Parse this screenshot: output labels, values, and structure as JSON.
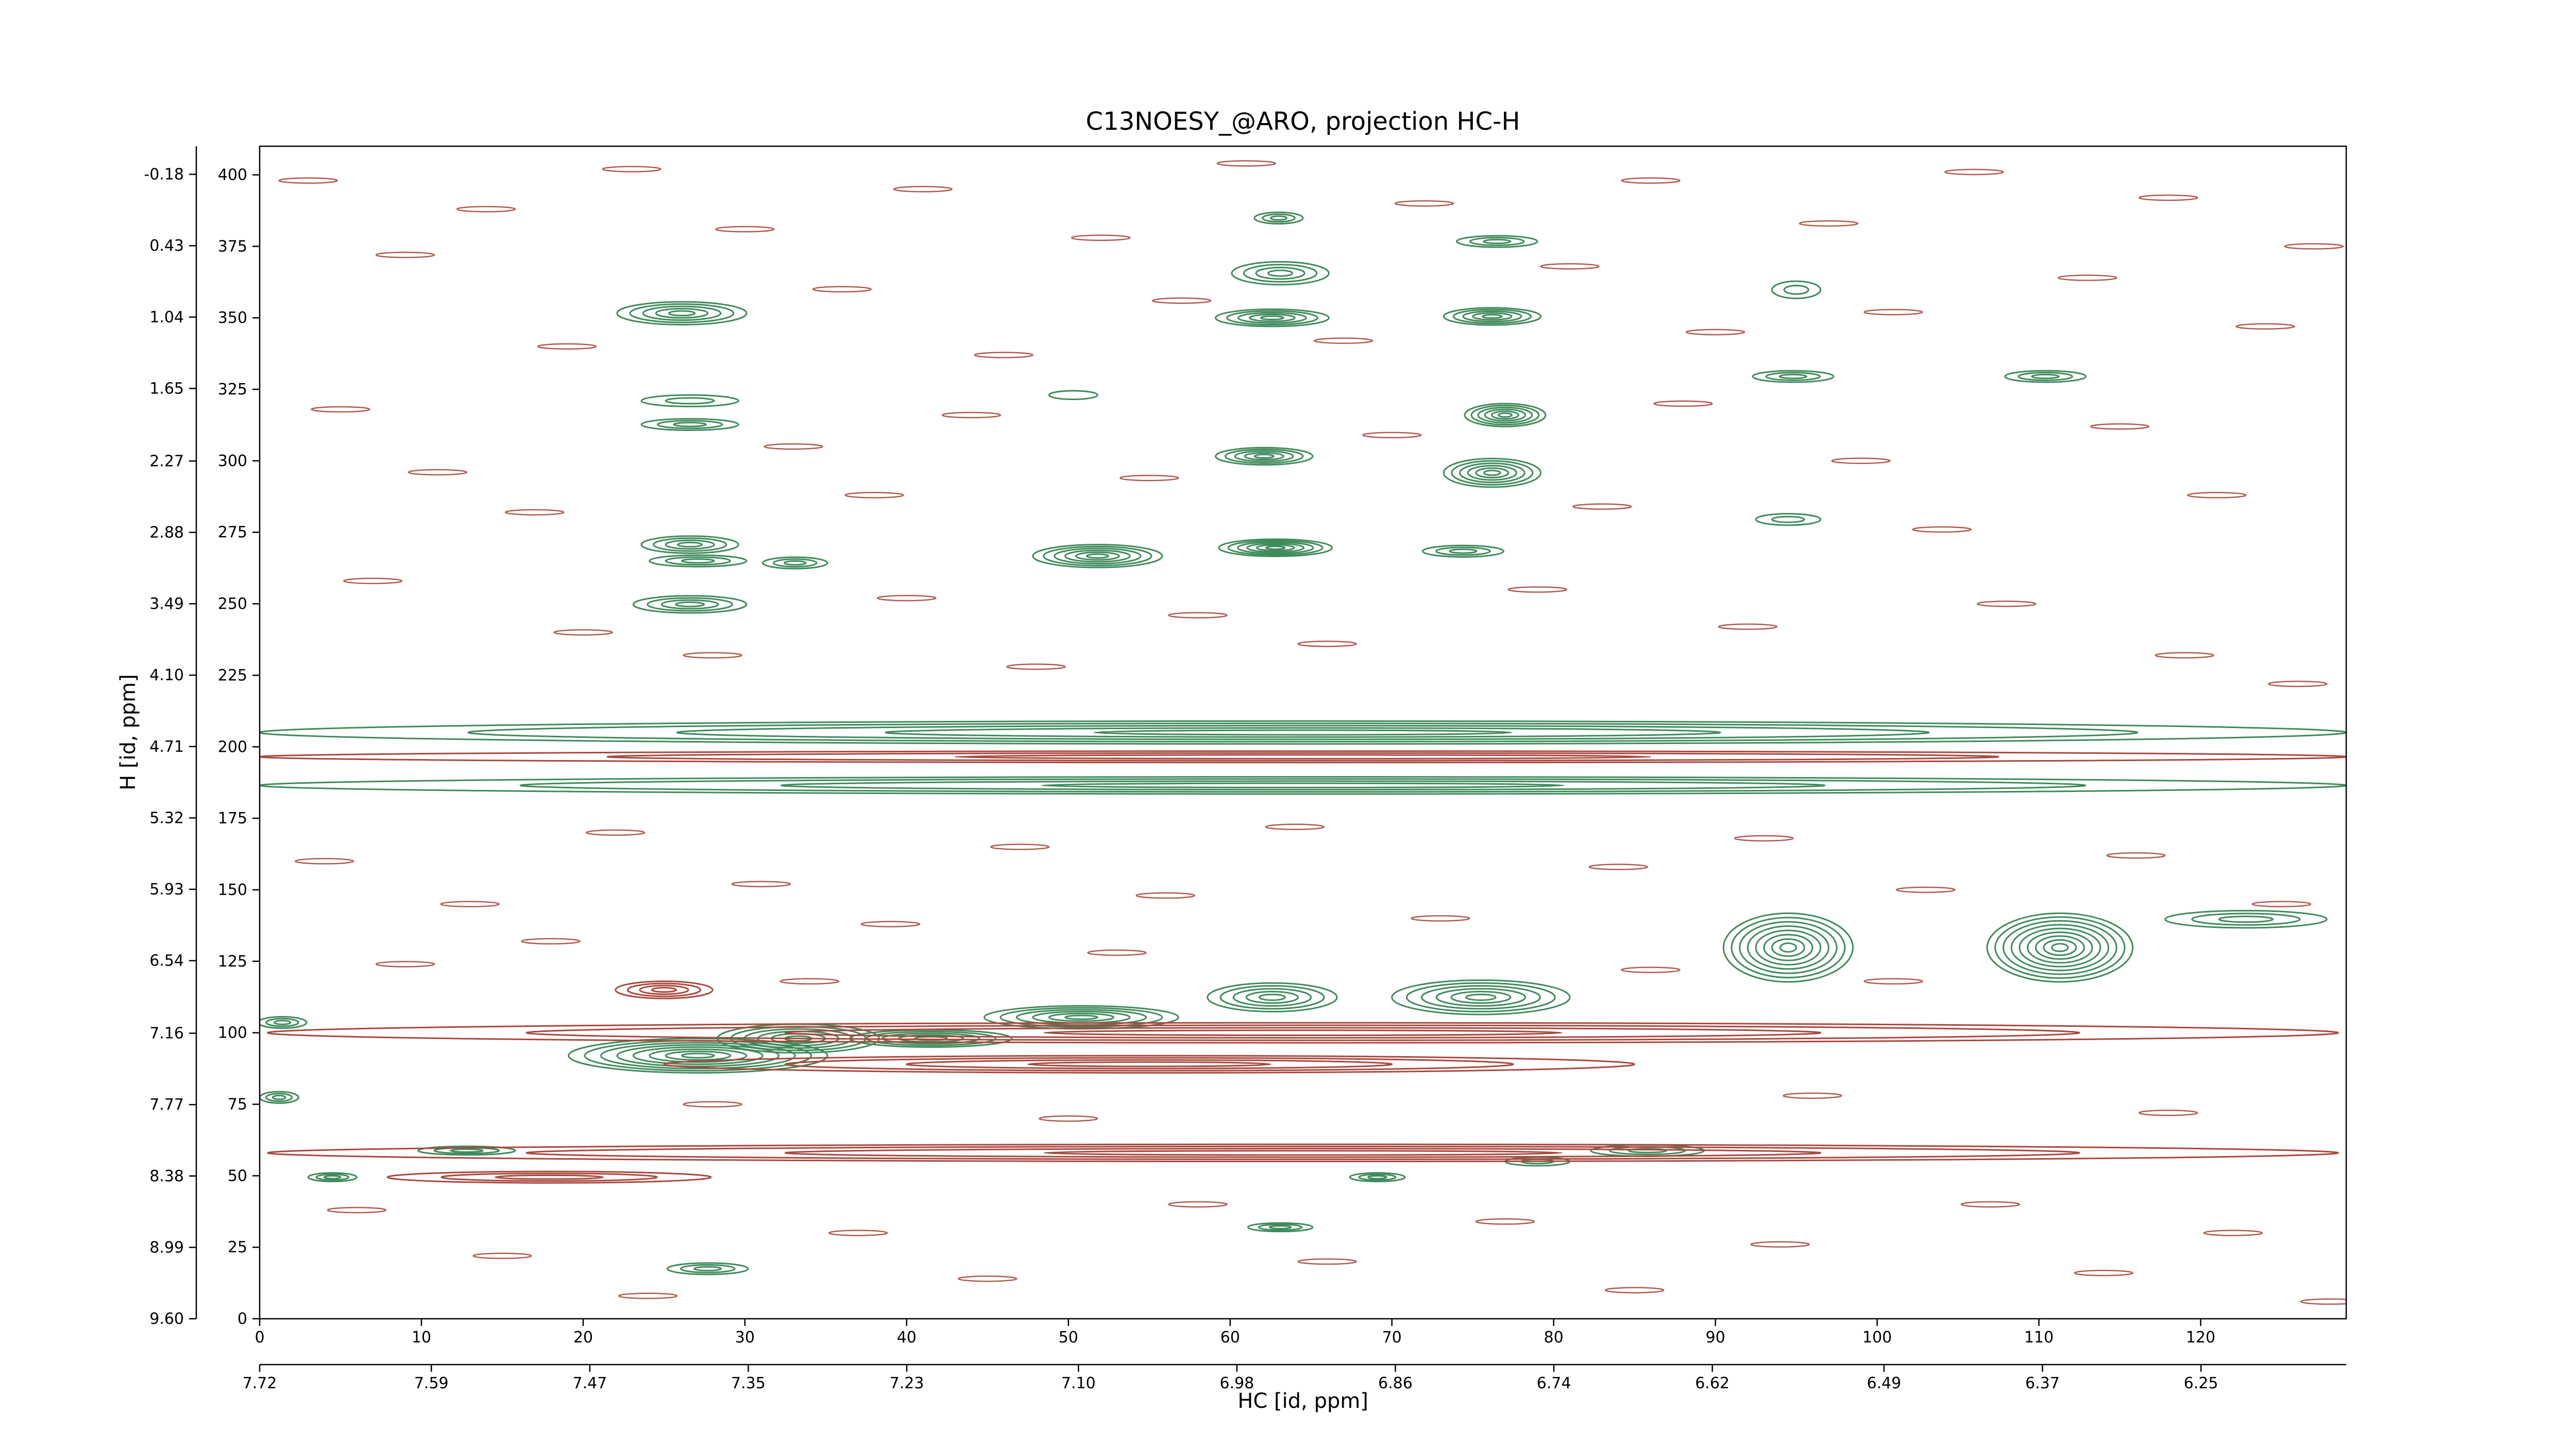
{
  "chart_data": {
    "type": "contour",
    "title": "C13NOESY_@ARO, projection HC-H",
    "xlabel": "HC [id, ppm]",
    "ylabel": "H [id, ppm]",
    "xlim": [
      0,
      129
    ],
    "ylim": [
      0,
      410
    ],
    "xticks": [
      0,
      10,
      20,
      30,
      40,
      50,
      60,
      70,
      80,
      90,
      100,
      110,
      120
    ],
    "yticks": [
      0,
      25,
      50,
      75,
      100,
      125,
      150,
      175,
      200,
      225,
      250,
      275,
      300,
      325,
      350,
      375,
      400
    ],
    "x2lim": [
      7.72,
      6.14
    ],
    "x2ticks": [
      7.72,
      7.59,
      7.47,
      7.35,
      7.23,
      {
        "value": 7.1,
        "label": "7.10"
      },
      6.98,
      6.86,
      6.74,
      6.62,
      6.49,
      6.37,
      6.25
    ],
    "y2lim": [
      9.6,
      -0.42
    ],
    "y2ticks": [
      {
        "value": 9.6,
        "label": "9.60"
      },
      8.99,
      8.38,
      7.77,
      7.16,
      6.54,
      5.93,
      5.32,
      4.71,
      {
        "value": 4.1,
        "label": "4.10"
      },
      3.49,
      2.88,
      2.27,
      1.65,
      1.04,
      0.43,
      -0.18
    ],
    "contours": [
      {
        "color": "#3f8a5a",
        "peaks": [
          {
            "x": 26.1,
            "y": 351.6,
            "rx": 4,
            "ry": 4,
            "levels": 5
          },
          {
            "x": 26.6,
            "y": 321,
            "rx": 3,
            "ry": 2,
            "levels": 2
          },
          {
            "x": 26.6,
            "y": 312.7,
            "rx": 3,
            "ry": 2,
            "levels": 3
          },
          {
            "x": 26.6,
            "y": 270.7,
            "rx": 3,
            "ry": 3,
            "levels": 4
          },
          {
            "x": 27.1,
            "y": 265,
            "rx": 3,
            "ry": 2,
            "levels": 3
          },
          {
            "x": 26.6,
            "y": 249.8,
            "rx": 3.5,
            "ry": 3,
            "levels": 4
          },
          {
            "x": 33.1,
            "y": 264.3,
            "rx": 2,
            "ry": 2,
            "levels": 3
          },
          {
            "x": 51.8,
            "y": 266.7,
            "rx": 4,
            "ry": 4,
            "levels": 6
          },
          {
            "x": 62.8,
            "y": 269.6,
            "rx": 3.5,
            "ry": 3,
            "levels": 6
          },
          {
            "x": 63,
            "y": 384.9,
            "rx": 1.5,
            "ry": 2,
            "levels": 3
          },
          {
            "x": 63.1,
            "y": 365.6,
            "rx": 3,
            "ry": 4,
            "levels": 4
          },
          {
            "x": 62.6,
            "y": 350,
            "rx": 3.5,
            "ry": 3,
            "levels": 5
          },
          {
            "x": 62.1,
            "y": 301.6,
            "rx": 3,
            "ry": 3,
            "levels": 5
          },
          {
            "x": 76.5,
            "y": 376.7,
            "rx": 2.5,
            "ry": 2,
            "levels": 3
          },
          {
            "x": 76.2,
            "y": 350.5,
            "rx": 3,
            "ry": 3,
            "levels": 5
          },
          {
            "x": 77,
            "y": 316,
            "rx": 2.5,
            "ry": 4,
            "levels": 6
          },
          {
            "x": 76.2,
            "y": 295.8,
            "rx": 3,
            "ry": 5,
            "levels": 6
          },
          {
            "x": 74.4,
            "y": 268.4,
            "rx": 2.5,
            "ry": 2,
            "levels": 3
          },
          {
            "x": 94.8,
            "y": 329.5,
            "rx": 2.5,
            "ry": 2,
            "levels": 3
          },
          {
            "x": 110.4,
            "y": 329.5,
            "rx": 2.5,
            "ry": 2,
            "levels": 3
          },
          {
            "x": 95,
            "y": 359.8,
            "rx": 1.5,
            "ry": 3,
            "levels": 2
          },
          {
            "x": 94.5,
            "y": 279.5,
            "rx": 2,
            "ry": 2,
            "levels": 2
          },
          {
            "x": 50.3,
            "y": 323,
            "rx": 1.5,
            "ry": 1.5,
            "levels": 1
          },
          {
            "x": 94.5,
            "y": 129.8,
            "rx": 4,
            "ry": 12,
            "levels": 8
          },
          {
            "x": 111.3,
            "y": 129.8,
            "rx": 4.5,
            "ry": 12,
            "levels": 9
          },
          {
            "x": 122.8,
            "y": 139.7,
            "rx": 5,
            "ry": 3,
            "levels": 3
          },
          {
            "x": 62.6,
            "y": 112.4,
            "rx": 4,
            "ry": 5,
            "levels": 5
          },
          {
            "x": 75.5,
            "y": 112.4,
            "rx": 5.5,
            "ry": 6,
            "levels": 6
          },
          {
            "x": 27.1,
            "y": 92,
            "rx": 8,
            "ry": 6,
            "levels": 8
          },
          {
            "x": 33.3,
            "y": 98,
            "rx": 5,
            "ry": 5,
            "levels": 6
          },
          {
            "x": 41.5,
            "y": 98,
            "rx": 5,
            "ry": 3,
            "levels": 5
          },
          {
            "x": 50.8,
            "y": 105.4,
            "rx": 6,
            "ry": 4,
            "levels": 6
          },
          {
            "x": 1.4,
            "y": 103.6,
            "rx": 1.5,
            "ry": 2,
            "levels": 3
          },
          {
            "x": 1.2,
            "y": 77.4,
            "rx": 1.2,
            "ry": 2,
            "levels": 3
          },
          {
            "x": 4.5,
            "y": 49.5,
            "rx": 1.5,
            "ry": 1.5,
            "levels": 3
          },
          {
            "x": 12.8,
            "y": 58.8,
            "rx": 3,
            "ry": 1.5,
            "levels": 3
          },
          {
            "x": 85.8,
            "y": 58.8,
            "rx": 3.5,
            "ry": 2,
            "levels": 3
          },
          {
            "x": 79,
            "y": 55,
            "rx": 2,
            "ry": 1.5,
            "levels": 2
          },
          {
            "x": 69.1,
            "y": 49.5,
            "rx": 1.7,
            "ry": 1.5,
            "levels": 3
          },
          {
            "x": 63.1,
            "y": 32,
            "rx": 2,
            "ry": 1.5,
            "levels": 3
          },
          {
            "x": 27.7,
            "y": 17.5,
            "rx": 2.5,
            "ry": 2,
            "levels": 3
          },
          {
            "x": 64.5,
            "y": 205,
            "rx": 64.5,
            "ry": 4,
            "levels": 5
          },
          {
            "x": 64.5,
            "y": 186.5,
            "rx": 64.5,
            "ry": 3,
            "levels": 4
          }
        ]
      },
      {
        "color": "#a8483d",
        "peaks": [
          {
            "x": 64.5,
            "y": 196.5,
            "rx": 64.5,
            "ry": 2,
            "levels": 3
          },
          {
            "x": 64.5,
            "y": 100,
            "rx": 64,
            "ry": 3.5,
            "levels": 4
          },
          {
            "x": 55,
            "y": 89,
            "rx": 30,
            "ry": 3,
            "levels": 4
          },
          {
            "x": 64.5,
            "y": 58,
            "rx": 64,
            "ry": 3,
            "levels": 4
          },
          {
            "x": 25,
            "y": 115,
            "rx": 3,
            "ry": 3,
            "levels": 4
          },
          {
            "x": 17.9,
            "y": 49.5,
            "rx": 10,
            "ry": 2,
            "levels": 3
          }
        ]
      }
    ],
    "noise": {
      "color": "#b05a50",
      "points": [
        [
          3,
          398
        ],
        [
          9,
          372
        ],
        [
          14,
          388
        ],
        [
          19,
          340
        ],
        [
          23,
          402
        ],
        [
          30,
          381
        ],
        [
          36,
          360
        ],
        [
          41,
          395
        ],
        [
          46,
          337
        ],
        [
          52,
          378
        ],
        [
          57,
          356
        ],
        [
          61,
          404
        ],
        [
          67,
          342
        ],
        [
          72,
          390
        ],
        [
          81,
          368
        ],
        [
          86,
          398
        ],
        [
          90,
          345
        ],
        [
          97,
          383
        ],
        [
          101,
          352
        ],
        [
          106,
          401
        ],
        [
          113,
          364
        ],
        [
          118,
          392
        ],
        [
          124,
          347
        ],
        [
          127,
          375
        ],
        [
          5,
          318
        ],
        [
          11,
          296
        ],
        [
          17,
          282
        ],
        [
          33,
          305
        ],
        [
          38,
          288
        ],
        [
          44,
          316
        ],
        [
          55,
          294
        ],
        [
          70,
          309
        ],
        [
          83,
          284
        ],
        [
          88,
          320
        ],
        [
          99,
          300
        ],
        [
          104,
          276
        ],
        [
          115,
          312
        ],
        [
          121,
          288
        ],
        [
          7,
          258
        ],
        [
          20,
          240
        ],
        [
          28,
          232
        ],
        [
          40,
          252
        ],
        [
          48,
          228
        ],
        [
          58,
          246
        ],
        [
          66,
          236
        ],
        [
          79,
          255
        ],
        [
          92,
          242
        ],
        [
          108,
          250
        ],
        [
          119,
          232
        ],
        [
          126,
          222
        ],
        [
          4,
          160
        ],
        [
          13,
          145
        ],
        [
          22,
          170
        ],
        [
          31,
          152
        ],
        [
          39,
          138
        ],
        [
          47,
          165
        ],
        [
          56,
          148
        ],
        [
          64,
          172
        ],
        [
          73,
          140
        ],
        [
          84,
          158
        ],
        [
          93,
          168
        ],
        [
          103,
          150
        ],
        [
          116,
          162
        ],
        [
          125,
          145
        ],
        [
          9,
          124
        ],
        [
          18,
          132
        ],
        [
          34,
          118
        ],
        [
          53,
          128
        ],
        [
          86,
          122
        ],
        [
          101,
          118
        ],
        [
          6,
          38
        ],
        [
          15,
          22
        ],
        [
          24,
          8
        ],
        [
          37,
          30
        ],
        [
          45,
          14
        ],
        [
          58,
          40
        ],
        [
          66,
          20
        ],
        [
          77,
          34
        ],
        [
          85,
          10
        ],
        [
          94,
          26
        ],
        [
          107,
          40
        ],
        [
          114,
          16
        ],
        [
          122,
          30
        ],
        [
          128,
          6
        ],
        [
          50,
          70
        ],
        [
          96,
          78
        ],
        [
          118,
          72
        ],
        [
          28,
          75
        ]
      ]
    }
  }
}
